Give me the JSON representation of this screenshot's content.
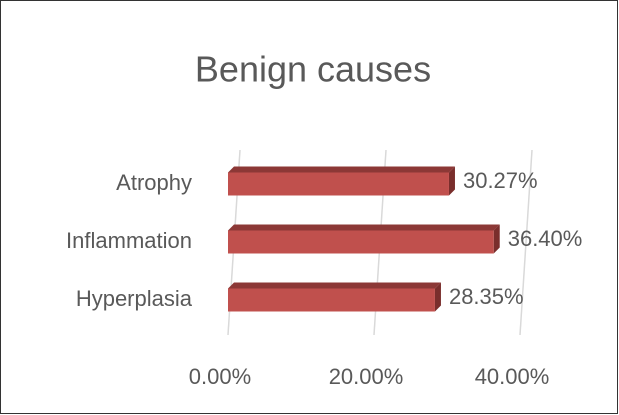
{
  "chart_data": {
    "type": "bar",
    "orientation": "horizontal",
    "title": "Benign causes",
    "categories": [
      "Atrophy",
      "Inflammation",
      "Hyperplasia"
    ],
    "values": [
      30.27,
      36.4,
      28.35
    ],
    "value_labels": [
      "30.27%",
      "36.40%",
      "28.35%"
    ],
    "color": "#c0504d",
    "xlim": [
      0,
      40
    ],
    "xticks": [
      {
        "value": 0,
        "label": "0.00%"
      },
      {
        "value": 20,
        "label": "20.00%"
      },
      {
        "value": 40,
        "label": "40.00%"
      }
    ],
    "grid": true
  }
}
